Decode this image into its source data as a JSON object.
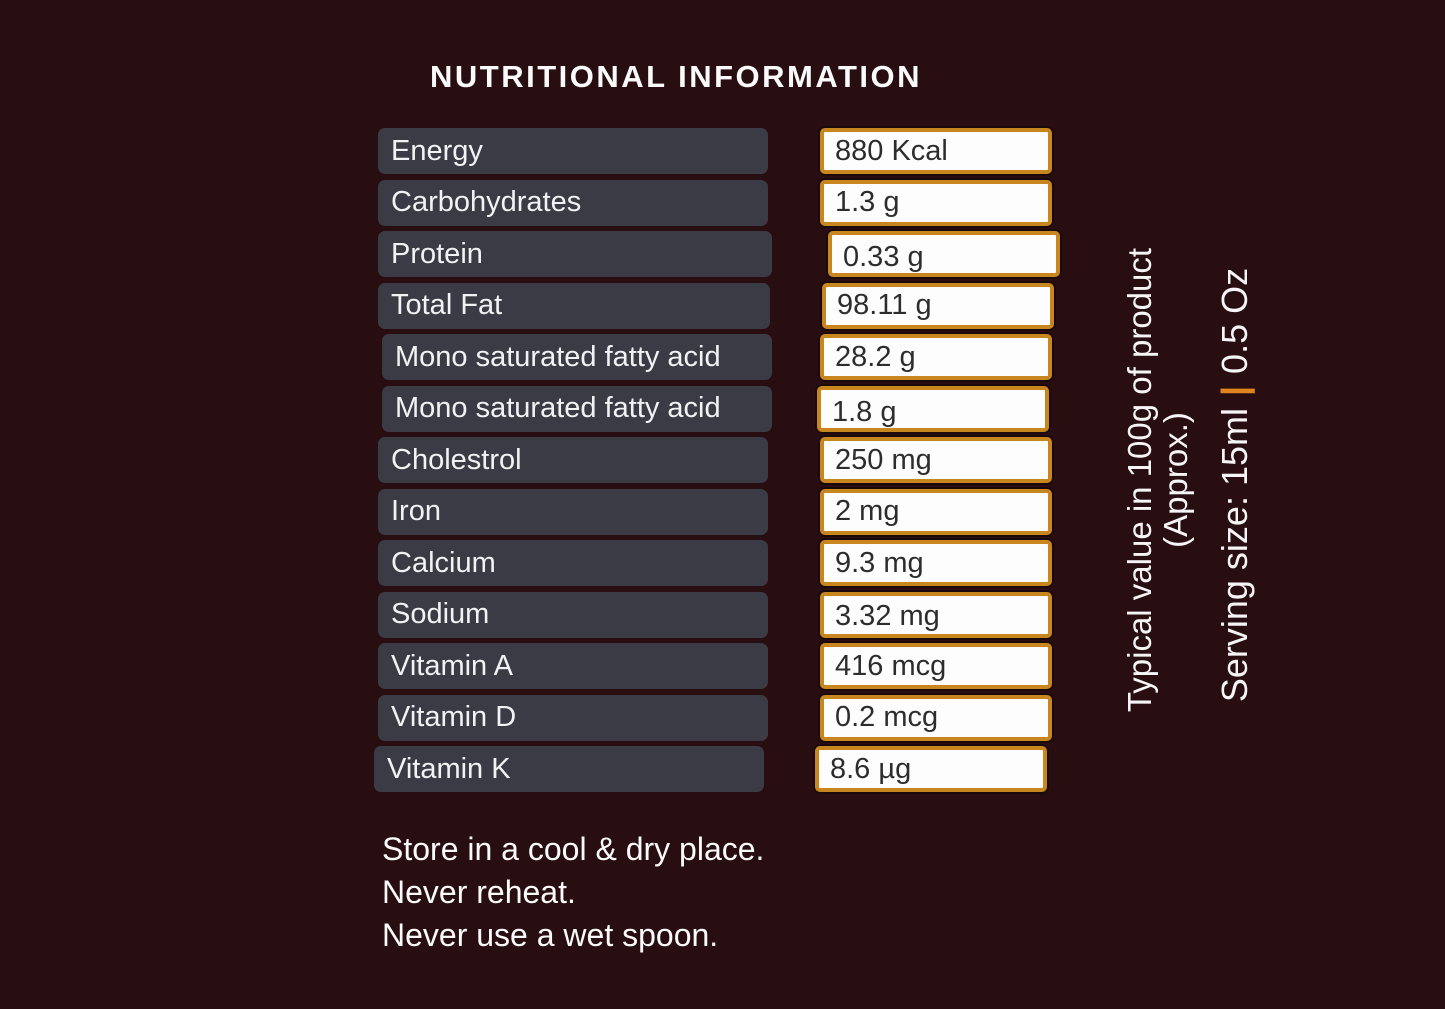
{
  "title": "NUTRITIONAL INFORMATION",
  "table": {
    "rows": [
      {
        "label": "Energy",
        "value": "880 Kcal"
      },
      {
        "label": "Carbohydrates",
        "value": "1.3 g"
      },
      {
        "label": "Protein",
        "value": "0.33 g"
      },
      {
        "label": "Total Fat",
        "value": "98.11 g"
      },
      {
        "label": "Mono saturated fatty acid",
        "value": "28.2 g"
      },
      {
        "label": "Mono saturated fatty acid",
        "value": "1.8 g"
      },
      {
        "label": "Cholestrol",
        "value": "250 mg"
      },
      {
        "label": "Iron",
        "value": "2 mg"
      },
      {
        "label": "Calcium",
        "value": "9.3 mg"
      },
      {
        "label": "Sodium",
        "value": "3.32 mg"
      },
      {
        "label": "Vitamin A",
        "value": "416 mcg"
      },
      {
        "label": "Vitamin D",
        "value": "0.2 mcg"
      },
      {
        "label": "Vitamin K",
        "value": "8.6 µg"
      }
    ]
  },
  "side_notes": {
    "typical_value_line1": "Typical value in 100g of product",
    "typical_value_line2": "(Approx.)",
    "serving_size": "Serving size: 15ml",
    "separator": "|",
    "serving_alt": "0.5 Oz"
  },
  "storage": {
    "line1": "Store in a cool & dry place.",
    "line2": "Never reheat.",
    "line3": "Never use a wet spoon."
  },
  "colors": {
    "background": "#280e10",
    "label_box": "#3b3b46",
    "value_box_border": "#c8871e",
    "value_box_fill": "#fdfdfd",
    "accent_orange": "#e08420",
    "text_light": "#f5f5f5",
    "value_text": "#2d2d2d"
  }
}
